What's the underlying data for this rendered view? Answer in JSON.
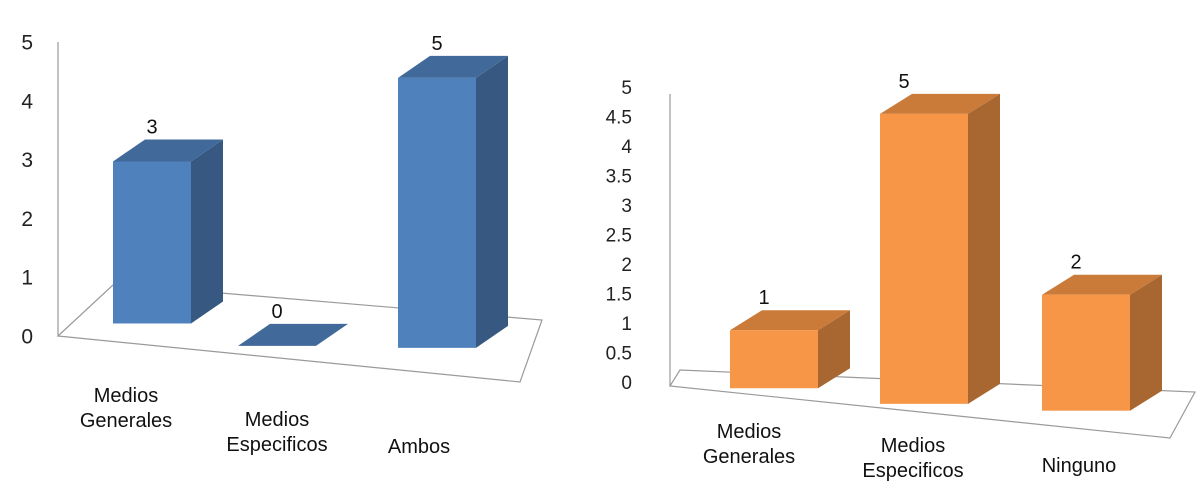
{
  "chart_data": [
    {
      "type": "bar",
      "categories": [
        "Medios Generales",
        "Medios Especificos",
        "Ambos"
      ],
      "values": [
        3,
        0,
        5
      ],
      "data_labels": [
        "3",
        "0",
        "5"
      ],
      "ylim": [
        0,
        5
      ],
      "yticks": [
        "0",
        "1",
        "2",
        "3",
        "4",
        "5"
      ],
      "grid": false,
      "color": "#4f81bd"
    },
    {
      "type": "bar",
      "categories": [
        "Medios Generales",
        "Medios Especificos",
        "Ninguno"
      ],
      "values": [
        1,
        5,
        2
      ],
      "data_labels": [
        "1",
        "5",
        "2"
      ],
      "ylim": [
        0,
        5
      ],
      "yticks": [
        "0",
        "0.5",
        "1",
        "1.5",
        "2",
        "2.5",
        "3",
        "3.5",
        "4",
        "4.5",
        "5"
      ],
      "grid": false,
      "color": "#f79646"
    }
  ]
}
